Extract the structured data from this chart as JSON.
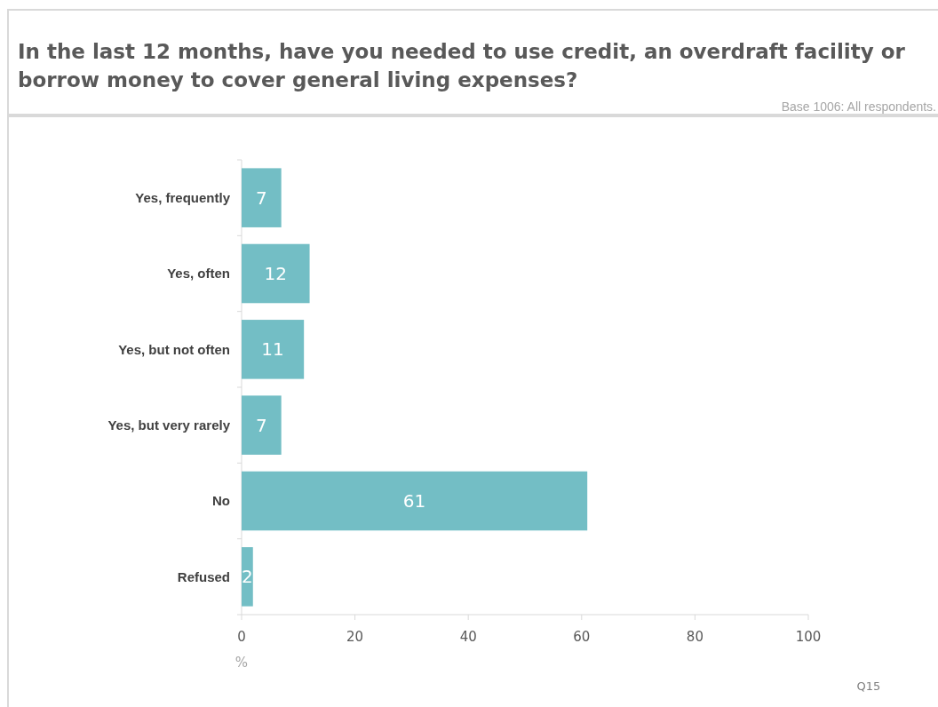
{
  "chart_data": {
    "type": "bar",
    "orientation": "horizontal",
    "title": "In the last 12 months, have you needed to use credit, an overdraft facility or borrow money to cover general living expenses?",
    "categories": [
      "Yes, frequently",
      "Yes, often",
      "Yes, but not often",
      "Yes, but very rarely",
      "No",
      "Refused"
    ],
    "values": [
      7,
      12,
      11,
      7,
      61,
      2
    ],
    "color": "#73bec5",
    "data_labels": true,
    "xlim": [
      0,
      100
    ],
    "xticks": [
      0,
      20,
      40,
      60,
      80,
      100
    ],
    "xlabel": "%",
    "annotations": [
      "Base 1006: All respondents.",
      "Q15"
    ]
  }
}
